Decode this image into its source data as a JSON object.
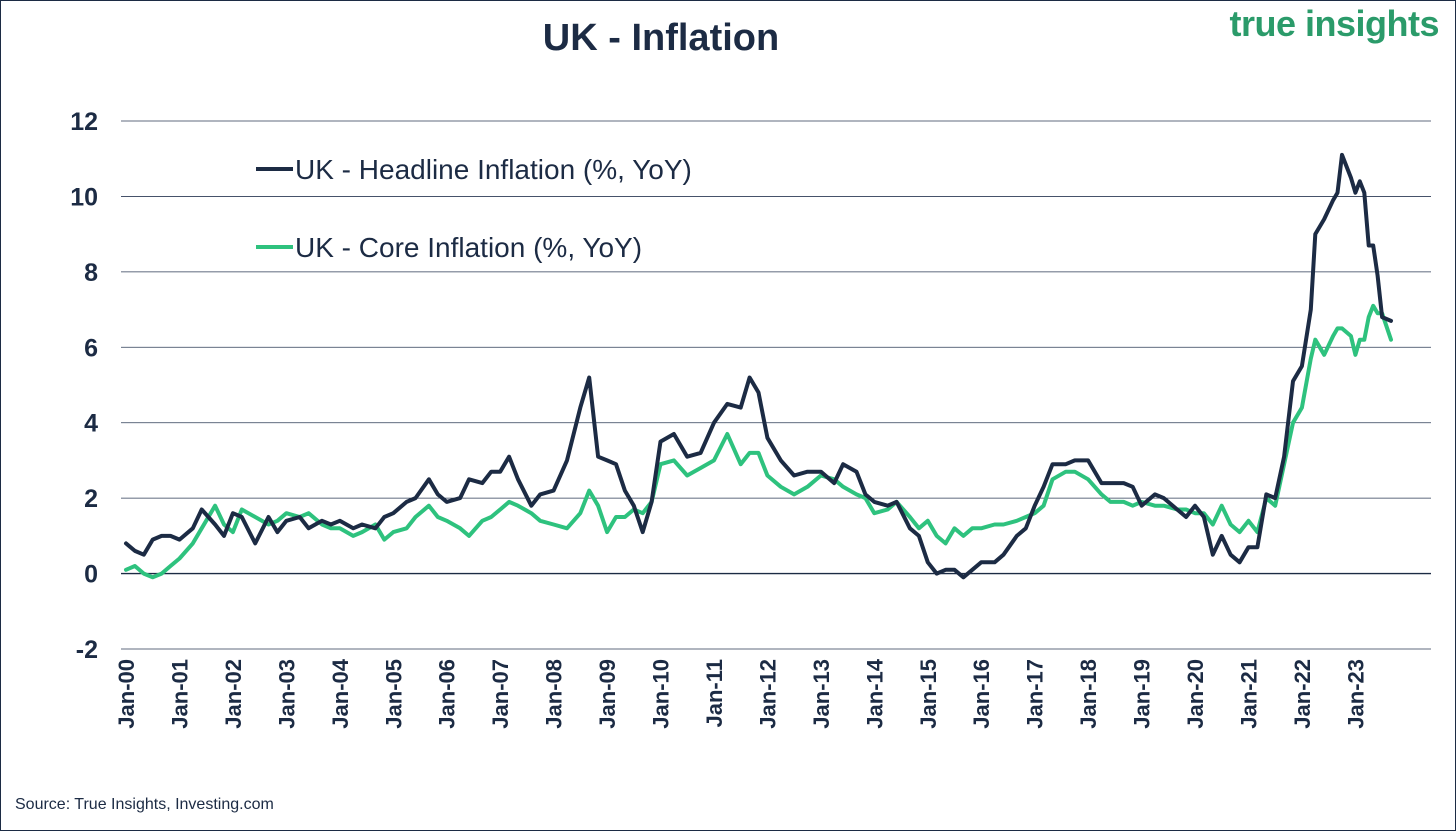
{
  "header": {
    "title": "UK - Inflation",
    "brand": "true insights"
  },
  "footer": {
    "source": "Source: True Insights, Investing.com"
  },
  "chart_data": {
    "type": "line",
    "title": "UK - Inflation",
    "xlabel": "",
    "ylabel": "",
    "ylim": [
      -2,
      12
    ],
    "yticks": [
      -2,
      0,
      2,
      4,
      6,
      8,
      10,
      12
    ],
    "x_tick_labels": [
      "Jan-00",
      "Jan-01",
      "Jan-02",
      "Jan-03",
      "Jan-04",
      "Jan-05",
      "Jan-06",
      "Jan-07",
      "Jan-08",
      "Jan-09",
      "Jan-10",
      "Jan-11",
      "Jan-12",
      "Jan-13",
      "Jan-14",
      "Jan-15",
      "Jan-16",
      "Jan-17",
      "Jan-18",
      "Jan-19",
      "Jan-20",
      "Jan-21",
      "Jan-22",
      "Jan-23"
    ],
    "x_range": [
      "2000-01",
      "2023-09"
    ],
    "grid": "horizontal",
    "legend_position": "top-left",
    "series": [
      {
        "name": "UK - Headline Inflation (%, YoY)",
        "color": "#1c2b44",
        "points": [
          [
            "2000-01",
            0.8
          ],
          [
            "2000-03",
            0.6
          ],
          [
            "2000-05",
            0.5
          ],
          [
            "2000-07",
            0.9
          ],
          [
            "2000-09",
            1.0
          ],
          [
            "2000-11",
            1.0
          ],
          [
            "2001-01",
            0.9
          ],
          [
            "2001-04",
            1.2
          ],
          [
            "2001-06",
            1.7
          ],
          [
            "2001-09",
            1.3
          ],
          [
            "2001-11",
            1.0
          ],
          [
            "2002-01",
            1.6
          ],
          [
            "2002-03",
            1.5
          ],
          [
            "2002-06",
            0.8
          ],
          [
            "2002-09",
            1.5
          ],
          [
            "2002-11",
            1.1
          ],
          [
            "2003-01",
            1.4
          ],
          [
            "2003-04",
            1.5
          ],
          [
            "2003-06",
            1.2
          ],
          [
            "2003-09",
            1.4
          ],
          [
            "2003-11",
            1.3
          ],
          [
            "2004-01",
            1.4
          ],
          [
            "2004-04",
            1.2
          ],
          [
            "2004-06",
            1.3
          ],
          [
            "2004-09",
            1.2
          ],
          [
            "2004-11",
            1.5
          ],
          [
            "2005-01",
            1.6
          ],
          [
            "2005-04",
            1.9
          ],
          [
            "2005-06",
            2.0
          ],
          [
            "2005-09",
            2.5
          ],
          [
            "2005-11",
            2.1
          ],
          [
            "2006-01",
            1.9
          ],
          [
            "2006-04",
            2.0
          ],
          [
            "2006-06",
            2.5
          ],
          [
            "2006-09",
            2.4
          ],
          [
            "2006-11",
            2.7
          ],
          [
            "2007-01",
            2.7
          ],
          [
            "2007-03",
            3.1
          ],
          [
            "2007-05",
            2.5
          ],
          [
            "2007-08",
            1.8
          ],
          [
            "2007-10",
            2.1
          ],
          [
            "2008-01",
            2.2
          ],
          [
            "2008-04",
            3.0
          ],
          [
            "2008-07",
            4.4
          ],
          [
            "2008-09",
            5.2
          ],
          [
            "2008-11",
            3.1
          ],
          [
            "2009-01",
            3.0
          ],
          [
            "2009-03",
            2.9
          ],
          [
            "2009-05",
            2.2
          ],
          [
            "2009-07",
            1.8
          ],
          [
            "2009-09",
            1.1
          ],
          [
            "2009-11",
            1.9
          ],
          [
            "2010-01",
            3.5
          ],
          [
            "2010-04",
            3.7
          ],
          [
            "2010-07",
            3.1
          ],
          [
            "2010-10",
            3.2
          ],
          [
            "2011-01",
            4.0
          ],
          [
            "2011-04",
            4.5
          ],
          [
            "2011-07",
            4.4
          ],
          [
            "2011-09",
            5.2
          ],
          [
            "2011-11",
            4.8
          ],
          [
            "2012-01",
            3.6
          ],
          [
            "2012-04",
            3.0
          ],
          [
            "2012-07",
            2.6
          ],
          [
            "2012-10",
            2.7
          ],
          [
            "2013-01",
            2.7
          ],
          [
            "2013-04",
            2.4
          ],
          [
            "2013-06",
            2.9
          ],
          [
            "2013-09",
            2.7
          ],
          [
            "2013-11",
            2.1
          ],
          [
            "2014-01",
            1.9
          ],
          [
            "2014-04",
            1.8
          ],
          [
            "2014-06",
            1.9
          ],
          [
            "2014-09",
            1.2
          ],
          [
            "2014-11",
            1.0
          ],
          [
            "2015-01",
            0.3
          ],
          [
            "2015-03",
            0.0
          ],
          [
            "2015-05",
            0.1
          ],
          [
            "2015-07",
            0.1
          ],
          [
            "2015-09",
            -0.1
          ],
          [
            "2015-11",
            0.1
          ],
          [
            "2016-01",
            0.3
          ],
          [
            "2016-04",
            0.3
          ],
          [
            "2016-06",
            0.5
          ],
          [
            "2016-09",
            1.0
          ],
          [
            "2016-11",
            1.2
          ],
          [
            "2017-01",
            1.8
          ],
          [
            "2017-03",
            2.3
          ],
          [
            "2017-05",
            2.9
          ],
          [
            "2017-08",
            2.9
          ],
          [
            "2017-10",
            3.0
          ],
          [
            "2018-01",
            3.0
          ],
          [
            "2018-04",
            2.4
          ],
          [
            "2018-06",
            2.4
          ],
          [
            "2018-09",
            2.4
          ],
          [
            "2018-11",
            2.3
          ],
          [
            "2019-01",
            1.8
          ],
          [
            "2019-04",
            2.1
          ],
          [
            "2019-06",
            2.0
          ],
          [
            "2019-09",
            1.7
          ],
          [
            "2019-11",
            1.5
          ],
          [
            "2020-01",
            1.8
          ],
          [
            "2020-03",
            1.5
          ],
          [
            "2020-05",
            0.5
          ],
          [
            "2020-07",
            1.0
          ],
          [
            "2020-09",
            0.5
          ],
          [
            "2020-11",
            0.3
          ],
          [
            "2021-01",
            0.7
          ],
          [
            "2021-03",
            0.7
          ],
          [
            "2021-05",
            2.1
          ],
          [
            "2021-07",
            2.0
          ],
          [
            "2021-09",
            3.1
          ],
          [
            "2021-11",
            5.1
          ],
          [
            "2022-01",
            5.5
          ],
          [
            "2022-03",
            7.0
          ],
          [
            "2022-04",
            9.0
          ],
          [
            "2022-06",
            9.4
          ],
          [
            "2022-08",
            9.9
          ],
          [
            "2022-09",
            10.1
          ],
          [
            "2022-10",
            11.1
          ],
          [
            "2022-12",
            10.5
          ],
          [
            "2023-01",
            10.1
          ],
          [
            "2023-02",
            10.4
          ],
          [
            "2023-03",
            10.1
          ],
          [
            "2023-04",
            8.7
          ],
          [
            "2023-05",
            8.7
          ],
          [
            "2023-06",
            7.9
          ],
          [
            "2023-07",
            6.8
          ],
          [
            "2023-09",
            6.7
          ]
        ]
      },
      {
        "name": "UK - Core Inflation (%, YoY)",
        "color": "#2ec27e",
        "points": [
          [
            "2000-01",
            0.1
          ],
          [
            "2000-03",
            0.2
          ],
          [
            "2000-05",
            0.0
          ],
          [
            "2000-07",
            -0.1
          ],
          [
            "2000-09",
            0.0
          ],
          [
            "2000-11",
            0.2
          ],
          [
            "2001-01",
            0.4
          ],
          [
            "2001-04",
            0.8
          ],
          [
            "2001-06",
            1.2
          ],
          [
            "2001-09",
            1.8
          ],
          [
            "2001-11",
            1.3
          ],
          [
            "2002-01",
            1.1
          ],
          [
            "2002-03",
            1.7
          ],
          [
            "2002-06",
            1.5
          ],
          [
            "2002-09",
            1.3
          ],
          [
            "2002-11",
            1.4
          ],
          [
            "2003-01",
            1.6
          ],
          [
            "2003-04",
            1.5
          ],
          [
            "2003-06",
            1.6
          ],
          [
            "2003-09",
            1.3
          ],
          [
            "2003-11",
            1.2
          ],
          [
            "2004-01",
            1.2
          ],
          [
            "2004-04",
            1.0
          ],
          [
            "2004-06",
            1.1
          ],
          [
            "2004-09",
            1.3
          ],
          [
            "2004-11",
            0.9
          ],
          [
            "2005-01",
            1.1
          ],
          [
            "2005-04",
            1.2
          ],
          [
            "2005-06",
            1.5
          ],
          [
            "2005-09",
            1.8
          ],
          [
            "2005-11",
            1.5
          ],
          [
            "2006-01",
            1.4
          ],
          [
            "2006-04",
            1.2
          ],
          [
            "2006-06",
            1.0
          ],
          [
            "2006-09",
            1.4
          ],
          [
            "2006-11",
            1.5
          ],
          [
            "2007-01",
            1.7
          ],
          [
            "2007-03",
            1.9
          ],
          [
            "2007-05",
            1.8
          ],
          [
            "2007-08",
            1.6
          ],
          [
            "2007-10",
            1.4
          ],
          [
            "2008-01",
            1.3
          ],
          [
            "2008-04",
            1.2
          ],
          [
            "2008-07",
            1.6
          ],
          [
            "2008-09",
            2.2
          ],
          [
            "2008-11",
            1.8
          ],
          [
            "2009-01",
            1.1
          ],
          [
            "2009-03",
            1.5
          ],
          [
            "2009-05",
            1.5
          ],
          [
            "2009-07",
            1.7
          ],
          [
            "2009-09",
            1.6
          ],
          [
            "2009-11",
            1.9
          ],
          [
            "2010-01",
            2.9
          ],
          [
            "2010-04",
            3.0
          ],
          [
            "2010-07",
            2.6
          ],
          [
            "2010-10",
            2.8
          ],
          [
            "2011-01",
            3.0
          ],
          [
            "2011-04",
            3.7
          ],
          [
            "2011-07",
            2.9
          ],
          [
            "2011-09",
            3.2
          ],
          [
            "2011-11",
            3.2
          ],
          [
            "2012-01",
            2.6
          ],
          [
            "2012-04",
            2.3
          ],
          [
            "2012-07",
            2.1
          ],
          [
            "2012-10",
            2.3
          ],
          [
            "2013-01",
            2.6
          ],
          [
            "2013-04",
            2.5
          ],
          [
            "2013-06",
            2.3
          ],
          [
            "2013-09",
            2.1
          ],
          [
            "2013-11",
            2.0
          ],
          [
            "2014-01",
            1.6
          ],
          [
            "2014-04",
            1.7
          ],
          [
            "2014-06",
            1.9
          ],
          [
            "2014-09",
            1.5
          ],
          [
            "2014-11",
            1.2
          ],
          [
            "2015-01",
            1.4
          ],
          [
            "2015-03",
            1.0
          ],
          [
            "2015-05",
            0.8
          ],
          [
            "2015-07",
            1.2
          ],
          [
            "2015-09",
            1.0
          ],
          [
            "2015-11",
            1.2
          ],
          [
            "2016-01",
            1.2
          ],
          [
            "2016-04",
            1.3
          ],
          [
            "2016-06",
            1.3
          ],
          [
            "2016-09",
            1.4
          ],
          [
            "2016-11",
            1.5
          ],
          [
            "2017-01",
            1.6
          ],
          [
            "2017-03",
            1.8
          ],
          [
            "2017-05",
            2.5
          ],
          [
            "2017-08",
            2.7
          ],
          [
            "2017-10",
            2.7
          ],
          [
            "2018-01",
            2.5
          ],
          [
            "2018-04",
            2.1
          ],
          [
            "2018-06",
            1.9
          ],
          [
            "2018-09",
            1.9
          ],
          [
            "2018-11",
            1.8
          ],
          [
            "2019-01",
            1.9
          ],
          [
            "2019-04",
            1.8
          ],
          [
            "2019-06",
            1.8
          ],
          [
            "2019-09",
            1.7
          ],
          [
            "2019-11",
            1.7
          ],
          [
            "2020-01",
            1.6
          ],
          [
            "2020-03",
            1.6
          ],
          [
            "2020-05",
            1.3
          ],
          [
            "2020-07",
            1.8
          ],
          [
            "2020-09",
            1.3
          ],
          [
            "2020-11",
            1.1
          ],
          [
            "2021-01",
            1.4
          ],
          [
            "2021-03",
            1.1
          ],
          [
            "2021-05",
            2.0
          ],
          [
            "2021-07",
            1.8
          ],
          [
            "2021-09",
            2.9
          ],
          [
            "2021-11",
            4.0
          ],
          [
            "2022-01",
            4.4
          ],
          [
            "2022-03",
            5.7
          ],
          [
            "2022-04",
            6.2
          ],
          [
            "2022-06",
            5.8
          ],
          [
            "2022-08",
            6.3
          ],
          [
            "2022-09",
            6.5
          ],
          [
            "2022-10",
            6.5
          ],
          [
            "2022-12",
            6.3
          ],
          [
            "2023-01",
            5.8
          ],
          [
            "2023-02",
            6.2
          ],
          [
            "2023-03",
            6.2
          ],
          [
            "2023-04",
            6.8
          ],
          [
            "2023-05",
            7.1
          ],
          [
            "2023-06",
            6.9
          ],
          [
            "2023-07",
            6.9
          ],
          [
            "2023-09",
            6.2
          ]
        ]
      }
    ]
  }
}
